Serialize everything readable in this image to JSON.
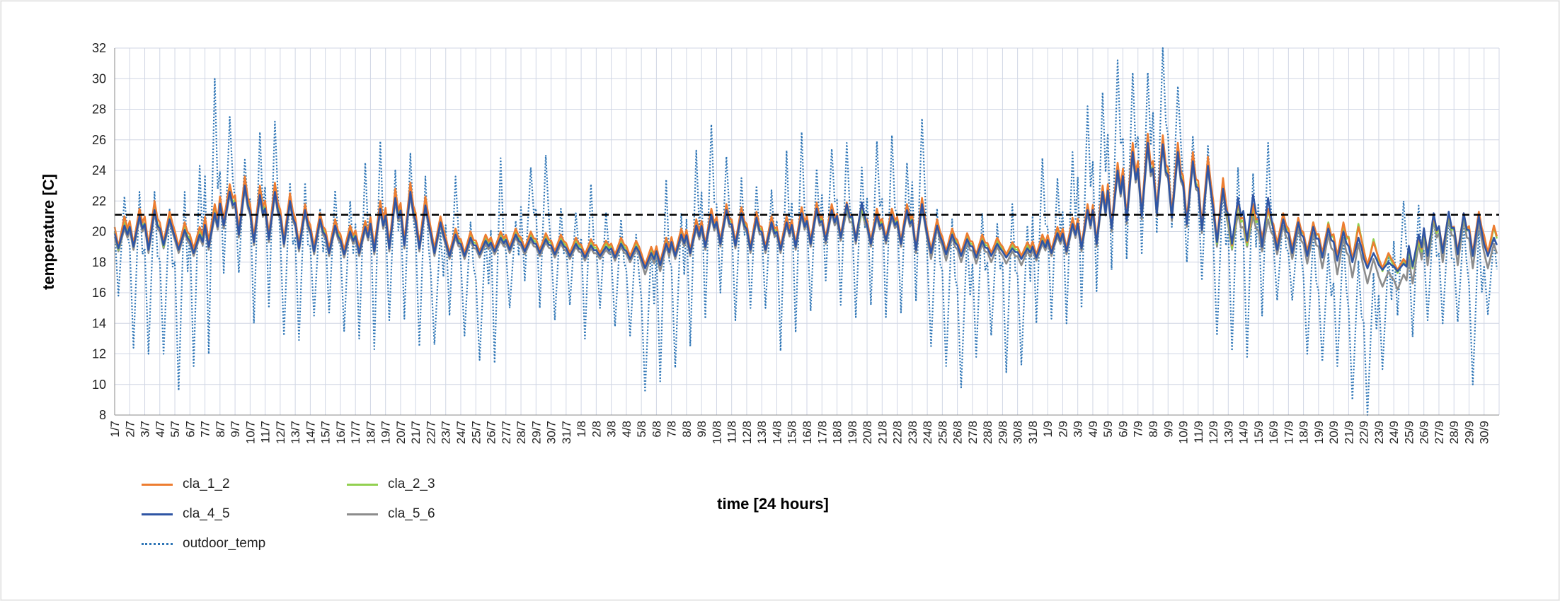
{
  "chart_data": {
    "type": "line",
    "xlabel": "time  [24 hours]",
    "ylabel": "temperature [C]",
    "ylim": [
      8,
      32
    ],
    "yticks": [
      8,
      10,
      12,
      14,
      16,
      18,
      20,
      22,
      24,
      26,
      28,
      30,
      32
    ],
    "categories": [
      "1/7",
      "2/7",
      "3/7",
      "4/7",
      "5/7",
      "6/7",
      "7/7",
      "8/7",
      "9/7",
      "10/7",
      "11/7",
      "12/7",
      "13/7",
      "14/7",
      "15/7",
      "16/7",
      "17/7",
      "18/7",
      "19/7",
      "20/7",
      "21/7",
      "22/7",
      "23/7",
      "24/7",
      "25/7",
      "26/7",
      "27/7",
      "28/7",
      "29/7",
      "30/7",
      "31/7",
      "1/8",
      "2/8",
      "3/8",
      "4/8",
      "5/8",
      "6/8",
      "7/8",
      "8/8",
      "9/8",
      "10/8",
      "11/8",
      "12/8",
      "13/8",
      "14/8",
      "15/8",
      "16/8",
      "17/8",
      "18/8",
      "19/8",
      "20/8",
      "21/8",
      "22/8",
      "23/8",
      "24/8",
      "25/8",
      "26/8",
      "27/8",
      "28/8",
      "29/8",
      "30/8",
      "31/8",
      "1/9",
      "2/9",
      "3/9",
      "4/9",
      "5/9",
      "6/9",
      "7/9",
      "8/9",
      "9/9",
      "10/9",
      "11/9",
      "12/9",
      "13/9",
      "14/9",
      "15/9",
      "16/9",
      "17/9",
      "18/9",
      "19/9",
      "20/9",
      "21/9",
      "22/9",
      "23/9",
      "24/9",
      "25/9",
      "26/9",
      "27/9",
      "28/9",
      "29/9",
      "30/9"
    ],
    "grid": true,
    "legend_position": "bottom-left",
    "reference_line": {
      "value": 21.1,
      "style": "dashed",
      "color": "#000000"
    },
    "series": [
      {
        "name": "cla_1_2",
        "color": "#ed7d31",
        "style": "solid",
        "daily_min": [
          19.0,
          19.2,
          19.1,
          19.3,
          19.0,
          18.9,
          19.4,
          20.8,
          20.1,
          19.6,
          19.8,
          19.5,
          19.2,
          19.0,
          18.9,
          18.8,
          18.9,
          19.0,
          19.2,
          19.4,
          19.2,
          18.9,
          18.6,
          18.6,
          18.7,
          18.9,
          19.0,
          18.9,
          18.8,
          18.7,
          18.6,
          18.5,
          18.6,
          18.5,
          18.4,
          17.8,
          18.0,
          18.6,
          18.8,
          19.2,
          19.4,
          19.3,
          19.0,
          19.0,
          19.0,
          19.2,
          19.4,
          19.6,
          19.8,
          19.6,
          19.4,
          19.6,
          19.4,
          19.0,
          18.8,
          18.7,
          18.6,
          18.5,
          18.6,
          18.5,
          18.4,
          18.5,
          18.8,
          18.9,
          19.1,
          19.4,
          20.5,
          21.0,
          21.3,
          21.5,
          21.2,
          20.8,
          20.4,
          19.4,
          19.1,
          19.3,
          19.6,
          19.2,
          18.9,
          18.7,
          18.6,
          18.4,
          18.2,
          17.8,
          17.6,
          17.5,
          17.8,
          18.6,
          18.8,
          18.7,
          18.6,
          18.6
        ],
        "daily_max": [
          21.0,
          21.5,
          22.0,
          21.3,
          20.6,
          20.3,
          21.8,
          23.1,
          23.6,
          23.0,
          23.2,
          22.5,
          21.8,
          21.2,
          20.8,
          20.4,
          20.7,
          22.0,
          22.8,
          23.2,
          22.3,
          21.0,
          20.2,
          20.0,
          19.8,
          20.0,
          20.2,
          20.0,
          19.9,
          19.8,
          19.6,
          19.5,
          19.4,
          19.6,
          19.4,
          19.0,
          19.6,
          20.2,
          20.8,
          21.5,
          21.8,
          21.6,
          21.3,
          21.0,
          21.0,
          21.6,
          21.9,
          21.8,
          21.9,
          21.8,
          21.5,
          21.5,
          21.8,
          22.2,
          20.8,
          20.2,
          19.9,
          19.8,
          19.6,
          19.3,
          19.3,
          19.8,
          20.3,
          20.9,
          21.8,
          23.0,
          24.5,
          25.8,
          26.4,
          26.3,
          25.8,
          25.2,
          24.9,
          23.5,
          22.0,
          21.8,
          21.5,
          21.2,
          20.9,
          20.6,
          20.5,
          20.6,
          20.3,
          19.3,
          18.6,
          18.2,
          19.6,
          21.0,
          21.2,
          21.2,
          21.3,
          20.4
        ]
      },
      {
        "name": "cla_2_3",
        "color": "#92d050",
        "style": "solid",
        "daily_min": [
          18.8,
          19.0,
          18.9,
          19.0,
          18.8,
          18.7,
          19.2,
          20.6,
          20.0,
          19.4,
          19.6,
          19.3,
          19.0,
          18.8,
          18.7,
          18.6,
          18.7,
          18.8,
          19.0,
          19.2,
          19.0,
          18.7,
          18.5,
          18.5,
          18.6,
          18.8,
          18.9,
          18.8,
          18.7,
          18.6,
          18.5,
          18.4,
          18.5,
          18.4,
          18.3,
          17.7,
          17.9,
          18.5,
          18.7,
          19.1,
          19.3,
          19.2,
          18.9,
          18.9,
          18.9,
          19.1,
          19.3,
          19.5,
          19.7,
          19.5,
          19.3,
          19.5,
          19.3,
          18.9,
          18.7,
          18.6,
          18.5,
          18.4,
          18.5,
          18.4,
          18.3,
          18.4,
          18.7,
          18.8,
          19.0,
          19.3,
          20.4,
          20.8,
          21.1,
          21.3,
          21.0,
          20.6,
          20.2,
          19.2,
          18.9,
          19.1,
          19.4,
          19.0,
          18.7,
          18.5,
          18.4,
          18.2,
          18.1,
          17.6,
          17.4,
          17.3,
          17.6,
          18.4,
          18.6,
          18.5,
          18.4,
          18.4
        ],
        "daily_max": [
          20.6,
          21.2,
          21.5,
          21.0,
          20.3,
          20.0,
          21.4,
          22.8,
          23.2,
          22.6,
          22.8,
          22.2,
          21.5,
          21.0,
          20.6,
          20.2,
          20.5,
          21.8,
          22.4,
          22.8,
          21.9,
          20.8,
          20.0,
          19.8,
          19.6,
          19.8,
          20.0,
          19.8,
          19.7,
          19.6,
          19.4,
          19.3,
          19.2,
          19.4,
          19.2,
          18.8,
          19.4,
          20.0,
          20.6,
          21.3,
          21.6,
          21.4,
          21.1,
          20.8,
          20.8,
          21.4,
          21.7,
          21.6,
          21.7,
          21.6,
          21.3,
          21.3,
          21.6,
          22.0,
          20.6,
          20.0,
          19.7,
          19.6,
          19.4,
          19.1,
          19.1,
          19.6,
          20.1,
          20.7,
          21.6,
          22.8,
          24.2,
          25.4,
          25.9,
          25.9,
          25.4,
          24.8,
          24.5,
          23.2,
          21.8,
          21.6,
          21.4,
          21.0,
          20.8,
          20.6,
          20.6,
          20.4,
          20.5,
          19.5,
          18.5,
          18.0,
          19.4,
          20.9,
          21.1,
          21.1,
          21.2,
          20.3
        ]
      },
      {
        "name": "cla_4_5",
        "color": "#2f55a4",
        "style": "solid",
        "daily_min": [
          18.9,
          19.0,
          18.8,
          19.1,
          18.8,
          18.6,
          19.0,
          20.4,
          19.8,
          19.3,
          19.5,
          19.2,
          18.9,
          18.7,
          18.6,
          18.5,
          18.6,
          18.7,
          18.9,
          19.1,
          18.9,
          18.6,
          18.4,
          18.4,
          18.5,
          18.7,
          18.8,
          18.7,
          18.6,
          18.5,
          18.4,
          18.3,
          18.4,
          18.3,
          18.2,
          17.6,
          17.8,
          18.4,
          18.6,
          19.0,
          19.2,
          19.1,
          18.8,
          18.8,
          18.8,
          19.0,
          19.2,
          19.4,
          19.6,
          19.4,
          19.2,
          19.4,
          19.2,
          18.8,
          18.6,
          18.5,
          18.4,
          18.3,
          18.4,
          18.3,
          18.2,
          18.3,
          18.6,
          18.7,
          18.9,
          19.2,
          20.2,
          20.7,
          21.0,
          21.2,
          20.9,
          20.5,
          20.1,
          19.3,
          19.2,
          19.4,
          19.0,
          18.8,
          18.6,
          18.4,
          18.3,
          18.1,
          18.0,
          17.6,
          17.5,
          17.4,
          17.7,
          18.4,
          18.6,
          18.5,
          18.4,
          18.4
        ],
        "daily_max": [
          20.4,
          21.0,
          21.4,
          20.8,
          20.1,
          19.8,
          21.2,
          22.6,
          23.0,
          22.4,
          22.6,
          22.0,
          21.4,
          20.8,
          20.4,
          20.0,
          20.3,
          21.5,
          22.2,
          22.6,
          21.7,
          20.6,
          19.8,
          19.6,
          19.4,
          19.6,
          19.8,
          19.6,
          19.5,
          19.4,
          19.2,
          19.1,
          19.0,
          19.2,
          19.0,
          18.6,
          19.2,
          19.8,
          20.4,
          21.1,
          21.4,
          21.2,
          20.9,
          20.6,
          20.6,
          21.2,
          21.5,
          21.4,
          21.8,
          21.9,
          21.1,
          21.1,
          21.4,
          21.8,
          20.4,
          19.8,
          19.5,
          19.4,
          19.2,
          18.9,
          18.9,
          19.4,
          19.9,
          20.5,
          21.4,
          22.6,
          24.0,
          25.2,
          25.8,
          25.7,
          25.2,
          24.6,
          24.3,
          22.8,
          22.2,
          22.4,
          22.2,
          20.8,
          20.6,
          20.3,
          20.2,
          20.0,
          19.6,
          18.6,
          18.0,
          17.9,
          19.8,
          21.2,
          21.3,
          21.2,
          21.0,
          19.6
        ]
      },
      {
        "name": "cla_5_6",
        "color": "#8c8c8c",
        "style": "solid",
        "daily_min": [
          18.7,
          18.8,
          18.6,
          18.9,
          18.6,
          18.4,
          18.8,
          20.2,
          19.6,
          19.1,
          19.3,
          19.0,
          18.7,
          18.5,
          18.4,
          18.3,
          18.4,
          18.5,
          18.7,
          18.9,
          18.7,
          18.4,
          18.2,
          18.2,
          18.3,
          18.5,
          18.6,
          18.5,
          18.4,
          18.3,
          18.2,
          18.1,
          18.2,
          18.1,
          18.0,
          17.2,
          17.4,
          18.2,
          18.4,
          18.8,
          19.0,
          18.9,
          18.6,
          18.6,
          18.6,
          18.8,
          19.0,
          19.2,
          19.4,
          19.2,
          19.0,
          19.2,
          19.0,
          18.6,
          18.2,
          18.1,
          18.0,
          17.9,
          18.0,
          17.9,
          17.8,
          18.1,
          18.4,
          18.5,
          18.7,
          19.0,
          20.0,
          20.5,
          20.8,
          21.0,
          20.7,
          20.3,
          19.9,
          19.0,
          18.8,
          19.0,
          18.7,
          18.5,
          18.2,
          17.9,
          17.6,
          17.2,
          17.0,
          16.6,
          16.4,
          16.2,
          16.6,
          17.8,
          18.0,
          17.8,
          17.6,
          17.6
        ],
        "daily_max": [
          20.2,
          20.8,
          21.2,
          20.6,
          19.9,
          19.6,
          21.0,
          22.4,
          22.8,
          22.2,
          22.4,
          21.8,
          21.2,
          20.6,
          20.2,
          19.8,
          20.1,
          21.3,
          22.0,
          22.4,
          21.5,
          20.4,
          19.6,
          19.4,
          19.2,
          19.4,
          19.6,
          19.4,
          19.3,
          19.2,
          19.0,
          18.9,
          18.8,
          19.0,
          18.8,
          18.4,
          19.0,
          19.6,
          20.2,
          20.9,
          21.2,
          21.0,
          20.7,
          20.4,
          20.4,
          21.0,
          21.3,
          21.2,
          21.4,
          21.4,
          20.9,
          20.9,
          21.2,
          21.6,
          20.2,
          19.6,
          19.3,
          19.2,
          19.0,
          18.7,
          18.7,
          19.2,
          19.7,
          20.3,
          21.2,
          22.4,
          23.8,
          25.0,
          25.5,
          25.5,
          25.0,
          24.4,
          24.1,
          22.6,
          21.2,
          21.0,
          20.8,
          20.4,
          20.2,
          19.9,
          19.8,
          19.6,
          19.2,
          18.2,
          17.4,
          17.2,
          19.2,
          20.8,
          20.9,
          20.8,
          20.6,
          19.2
        ]
      },
      {
        "name": "outdoor_temp",
        "color": "#2e75b6",
        "style": "dotted",
        "daily_min": [
          15.8,
          12.4,
          12.0,
          12.0,
          9.6,
          11.2,
          12.0,
          17.3,
          17.3,
          14.0,
          15.0,
          13.2,
          12.9,
          14.5,
          14.7,
          13.5,
          13.0,
          12.3,
          14.2,
          14.3,
          12.5,
          12.6,
          14.5,
          13.2,
          11.6,
          11.4,
          15.0,
          16.8,
          15.0,
          14.2,
          15.2,
          13.0,
          15.0,
          13.8,
          13.2,
          9.5,
          10.2,
          11.1,
          12.5,
          14.3,
          16.0,
          14.2,
          15.0,
          15.0,
          12.2,
          13.4,
          14.8,
          16.8,
          15.2,
          14.4,
          15.2,
          14.4,
          14.7,
          15.5,
          12.5,
          11.2,
          9.8,
          11.8,
          13.2,
          10.8,
          11.3,
          14.0,
          14.3,
          14.0,
          15.0,
          16.1,
          17.5,
          18.2,
          18.5,
          19.9,
          20.3,
          18.0,
          16.8,
          13.2,
          12.2,
          11.8,
          14.5,
          15.5,
          15.5,
          12.0,
          11.5,
          11.2,
          9.0,
          8.0,
          11.0,
          14.5,
          13.1,
          14.2,
          14.0,
          14.1,
          10.0,
          14.6
        ],
        "daily_max": [
          22.3,
          22.6,
          22.6,
          21.5,
          22.6,
          24.3,
          30.0,
          27.5,
          24.7,
          26.5,
          27.2,
          23.2,
          23.2,
          21.5,
          22.7,
          22.0,
          24.5,
          25.9,
          24.0,
          25.1,
          23.6,
          20.0,
          23.6,
          20.6,
          19.8,
          24.8,
          20.7,
          24.2,
          25.0,
          21.5,
          21.2,
          23.1,
          21.2,
          20.8,
          19.8,
          19.0,
          23.4,
          21.2,
          25.3,
          27.0,
          24.9,
          23.5,
          23.0,
          22.7,
          25.3,
          26.5,
          24.1,
          25.4,
          25.8,
          24.2,
          25.9,
          26.3,
          24.5,
          27.4,
          21.5,
          20.8,
          19.8,
          21.2,
          20.5,
          21.8,
          20.4,
          24.8,
          23.5,
          25.2,
          28.2,
          29.1,
          31.2,
          30.4,
          30.4,
          32.0,
          29.5,
          26.2,
          25.6,
          23.0,
          24.2,
          23.8,
          25.8,
          21.2,
          20.3,
          19.8,
          18.6,
          19.6,
          18.1,
          17.3,
          18.5,
          22.0,
          21.7,
          21.2,
          21.0,
          20.4,
          20.1,
          19.5
        ]
      }
    ]
  }
}
